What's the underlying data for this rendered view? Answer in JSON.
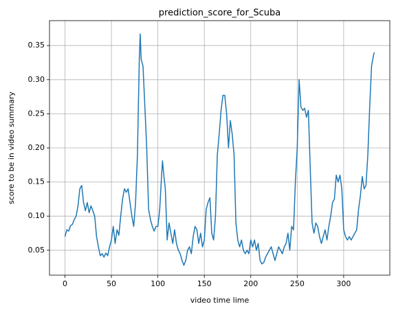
{
  "chart_data": {
    "type": "line",
    "title": "prediction_score_for_Scuba",
    "x_label": "video time lime",
    "y_label": "score to be in video summary",
    "color": "#1f77b4",
    "grid": true,
    "x": [
      0,
      2,
      4,
      6,
      8,
      10,
      12,
      14,
      16,
      18,
      20,
      22,
      24,
      26,
      28,
      30,
      32,
      34,
      36,
      38,
      40,
      42,
      44,
      46,
      48,
      50,
      52,
      54,
      56,
      58,
      60,
      62,
      64,
      66,
      68,
      70,
      72,
      74,
      76,
      78,
      80,
      81,
      82,
      84,
      86,
      88,
      90,
      92,
      94,
      96,
      98,
      100,
      102,
      104,
      105,
      106,
      108,
      110,
      112,
      114,
      116,
      118,
      120,
      122,
      124,
      126,
      128,
      130,
      132,
      134,
      136,
      138,
      140,
      142,
      144,
      146,
      148,
      150,
      152,
      154,
      156,
      158,
      160,
      162,
      164,
      166,
      168,
      170,
      172,
      174,
      176,
      178,
      180,
      182,
      184,
      186,
      188,
      190,
      192,
      194,
      196,
      198,
      200,
      202,
      204,
      206,
      208,
      210,
      212,
      214,
      216,
      218,
      220,
      222,
      224,
      226,
      228,
      230,
      232,
      234,
      236,
      238,
      240,
      242,
      244,
      246,
      248,
      250,
      252,
      254,
      256,
      258,
      260,
      262,
      264,
      266,
      268,
      270,
      272,
      274,
      276,
      278,
      280,
      282,
      284,
      286,
      288,
      290,
      292,
      294,
      296,
      298,
      300,
      302,
      304,
      306,
      308,
      310,
      312,
      314,
      316,
      318,
      320,
      322,
      324,
      326,
      328,
      330,
      332,
      333
    ],
    "values": [
      0.07,
      0.08,
      0.078,
      0.086,
      0.088,
      0.095,
      0.1,
      0.115,
      0.14,
      0.145,
      0.12,
      0.108,
      0.12,
      0.105,
      0.115,
      0.108,
      0.1,
      0.07,
      0.055,
      0.042,
      0.045,
      0.04,
      0.046,
      0.042,
      0.055,
      0.065,
      0.085,
      0.06,
      0.08,
      0.072,
      0.1,
      0.125,
      0.14,
      0.135,
      0.14,
      0.12,
      0.1,
      0.085,
      0.12,
      0.19,
      0.33,
      0.367,
      0.33,
      0.32,
      0.26,
      0.2,
      0.11,
      0.095,
      0.085,
      0.078,
      0.085,
      0.085,
      0.11,
      0.16,
      0.181,
      0.165,
      0.14,
      0.065,
      0.09,
      0.075,
      0.06,
      0.08,
      0.06,
      0.05,
      0.045,
      0.035,
      0.028,
      0.035,
      0.05,
      0.055,
      0.045,
      0.07,
      0.085,
      0.08,
      0.06,
      0.075,
      0.055,
      0.065,
      0.11,
      0.12,
      0.127,
      0.075,
      0.065,
      0.1,
      0.19,
      0.22,
      0.255,
      0.277,
      0.277,
      0.25,
      0.2,
      0.24,
      0.22,
      0.19,
      0.09,
      0.065,
      0.055,
      0.065,
      0.05,
      0.045,
      0.05,
      0.045,
      0.065,
      0.055,
      0.065,
      0.05,
      0.06,
      0.035,
      0.03,
      0.032,
      0.04,
      0.045,
      0.05,
      0.055,
      0.045,
      0.035,
      0.045,
      0.055,
      0.05,
      0.045,
      0.055,
      0.06,
      0.075,
      0.05,
      0.085,
      0.08,
      0.15,
      0.2,
      0.3,
      0.26,
      0.255,
      0.258,
      0.245,
      0.255,
      0.17,
      0.09,
      0.075,
      0.09,
      0.085,
      0.07,
      0.06,
      0.07,
      0.08,
      0.065,
      0.085,
      0.1,
      0.12,
      0.125,
      0.16,
      0.15,
      0.16,
      0.14,
      0.08,
      0.07,
      0.065,
      0.07,
      0.065,
      0.07,
      0.075,
      0.08,
      0.11,
      0.13,
      0.158,
      0.14,
      0.145,
      0.19,
      0.26,
      0.32,
      0.335,
      0.34
    ],
    "xlim": [
      -16.65,
      349.65
    ],
    "xticks": [
      0,
      50,
      100,
      150,
      200,
      250,
      300
    ],
    "ylim": [
      0.0135,
      0.3865
    ],
    "yticks": [
      0.05,
      {
        "value": 0.1,
        "label": "0.10"
      },
      0.15,
      {
        "value": 0.2,
        "label": "0.20"
      },
      0.25,
      {
        "value": 0.3,
        "label": "0.30"
      },
      0.35
    ]
  }
}
